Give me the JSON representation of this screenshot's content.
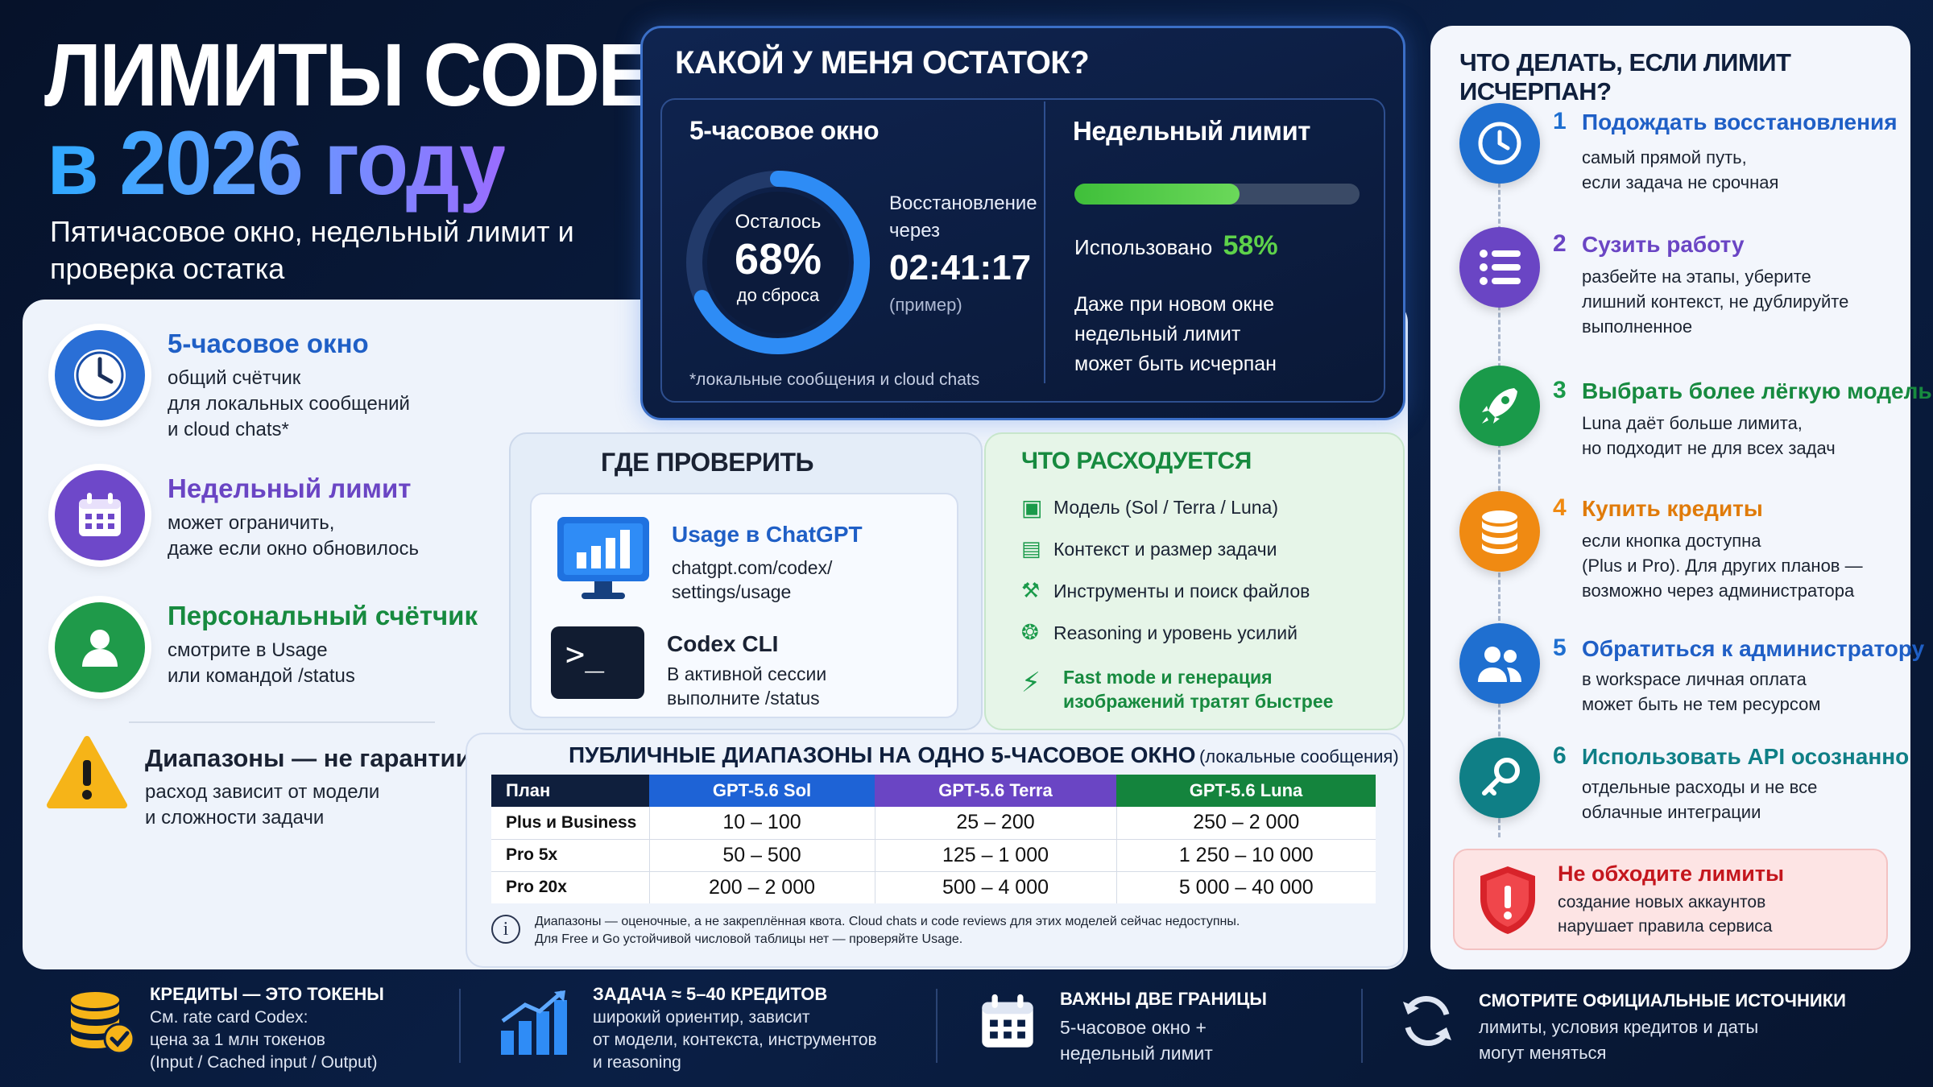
{
  "hero": {
    "title_line1": "ЛИМИТЫ CODEX",
    "title_line2": "в 2026 году",
    "subtitle": "Пятичасовое окно, недельный лимит и проверка остатка"
  },
  "left_features": [
    {
      "title": "5-часовое окно",
      "text_lines": [
        "общий счётчик",
        "для локальных сообщений",
        "и cloud chats*"
      ],
      "icon": "clock-icon",
      "color": "#2a6fd6"
    },
    {
      "title": "Недельный лимит",
      "text_lines": [
        "может ограничить,",
        "даже если окно обновилось"
      ],
      "icon": "calendar-icon",
      "color": "#6e48c9"
    },
    {
      "title": "Персональный счётчик",
      "text_lines": [
        "смотрите в Usage",
        "или командой /status"
      ],
      "icon": "user-icon",
      "color": "#1f9a4a"
    },
    {
      "title": "Диапазоны — не гарантии",
      "text_lines": [
        "расход зависит от модели",
        "и сложности задачи"
      ],
      "icon": "warning-icon",
      "color": "#1a2233"
    }
  ],
  "remaining": {
    "heading": "КАКОЙ У МЕНЯ ОСТАТОК?",
    "window_title": "5-часовое окно",
    "ring_top": "Осталось",
    "ring_value": "68%",
    "ring_bottom": "до сброса",
    "ring_fraction": 0.68,
    "restore_label_1": "Восстановление",
    "restore_label_2": "через",
    "restore_time": "02:41:17",
    "restore_note": "(пример)",
    "footnote": "*локальные сообщения и cloud chats",
    "weekly_title": "Недельный лимит",
    "weekly_used_fraction": 0.58,
    "weekly_used_label": "Использовано",
    "weekly_used_value": "58%",
    "weekly_note_lines": [
      "Даже при новом окне",
      "недельный лимит",
      "может быть исчерпан"
    ]
  },
  "where": {
    "heading": "ГДЕ ПРОВЕРИТЬ",
    "items": [
      {
        "title": "Usage в ChatGPT",
        "lines": [
          "chatgpt.com/codex/",
          "settings/usage"
        ],
        "icon": "monitor-chart-icon"
      },
      {
        "title": "Codex CLI",
        "lines": [
          "В активной сессии",
          "выполните /status"
        ],
        "icon": "terminal-icon"
      }
    ]
  },
  "spend": {
    "heading": "ЧТО РАСХОДУЕТСЯ",
    "items": [
      {
        "text": "Модель (Sol / Terra / Luna)",
        "icon": "cube-icon"
      },
      {
        "text": "Контекст и размер задачи",
        "icon": "document-icon"
      },
      {
        "text": "Инструменты и поиск файлов",
        "icon": "wrench-icon"
      },
      {
        "text": "Reasoning и уровень усилий",
        "icon": "brain-icon"
      }
    ],
    "highlight_lines": [
      "Fast mode и генерация",
      "изображений тратят быстрее"
    ],
    "highlight_icon": "lightning-icon"
  },
  "table": {
    "heading": "ПУБЛИЧНЫЕ ДИАПАЗОНЫ НА ОДНО 5-ЧАСОВОЕ ОКНО",
    "heading_note": "(локальные сообщения)",
    "columns": [
      "План",
      "GPT-5.6 Sol",
      "GPT-5.6 Terra",
      "GPT-5.6 Luna"
    ],
    "column_colors": [
      "#0f1f3d",
      "#1e63d6",
      "#6a45c4",
      "#14843d"
    ],
    "rows": [
      [
        "Plus и Business",
        "10 – 100",
        "25 – 200",
        "250 – 2 000"
      ],
      [
        "Pro 5x",
        "50 – 500",
        "125 – 1 000",
        "1 250 – 10 000"
      ],
      [
        "Pro 20x",
        "200 – 2 000",
        "500 – 4 000",
        "5 000 – 40 000"
      ]
    ],
    "note_lines": [
      "Диапазоны — оценочные, а не закреплённая квота. Cloud chats и code reviews для этих моделей сейчас недоступны.",
      "Для Free и Go устойчивой числовой таблицы нет — проверяйте Usage."
    ]
  },
  "steps": {
    "heading": "ЧТО ДЕЛАТЬ, ЕСЛИ ЛИМИТ ИСЧЕРПАН?",
    "items": [
      {
        "num": "1",
        "title": "Подождать восстановления",
        "lines": [
          "самый прямой путь,",
          "если задача не срочная"
        ],
        "icon": "clock-icon",
        "color": "#1f6fd0"
      },
      {
        "num": "2",
        "title": "Сузить работу",
        "lines": [
          "разбейте на этапы, уберите",
          "лишний контекст, не дублируйте",
          "выполненное"
        ],
        "icon": "list-icon",
        "color": "#6a45c4"
      },
      {
        "num": "3",
        "title": "Выбрать более лёгкую модель",
        "lines": [
          "Luna даёт больше лимита,",
          "но подходит не для всех задач"
        ],
        "icon": "rocket-icon",
        "color": "#1a9a4a"
      },
      {
        "num": "4",
        "title": "Купить кредиты",
        "lines": [
          "если кнопка доступна",
          "(Plus и Pro). Для других планов —",
          "возможно через администратора"
        ],
        "icon": "coins-icon",
        "color": "#f08a12"
      },
      {
        "num": "5",
        "title": "Обратиться к администратору",
        "lines": [
          "в workspace личная оплата",
          "может быть не тем ресурсом"
        ],
        "icon": "users-icon",
        "color": "#1f6fd0"
      },
      {
        "num": "6",
        "title": "Использовать API осознанно",
        "lines": [
          "отдельные расходы и не все",
          "облачные интеграции"
        ],
        "icon": "key-icon",
        "color": "#0f7f86"
      }
    ],
    "warning_title": "Не обходите лимиты",
    "warning_lines": [
      "создание новых аккаунтов",
      "нарушает правила сервиса"
    ],
    "warning_icon": "shield-icon"
  },
  "bottom": [
    {
      "title": "КРЕДИТЫ — ЭТО ТОКЕНЫ",
      "lines": [
        "См. rate card Codex:",
        "цена за 1 млн токенов",
        "(Input / Cached input / Output)"
      ],
      "icon": "coins-check-icon"
    },
    {
      "title": "ЗАДАЧА ≈ 5–40 КРЕДИТОВ",
      "lines": [
        "широкий ориентир, зависит",
        "от модели, контекста, инструментов",
        "и reasoning"
      ],
      "icon": "bar-chart-icon"
    },
    {
      "title": "ВАЖНЫ ДВЕ ГРАНИЦЫ",
      "lines": [
        "5-часовое окно +",
        "недельный лимит"
      ],
      "icon": "calendar-icon"
    },
    {
      "title": "СМОТРИТЕ ОФИЦИАЛЬНЫЕ ИСТОЧНИКИ",
      "lines": [
        "лимиты, условия кредитов и даты",
        "могут меняться"
      ],
      "icon": "refresh-icon"
    }
  ]
}
